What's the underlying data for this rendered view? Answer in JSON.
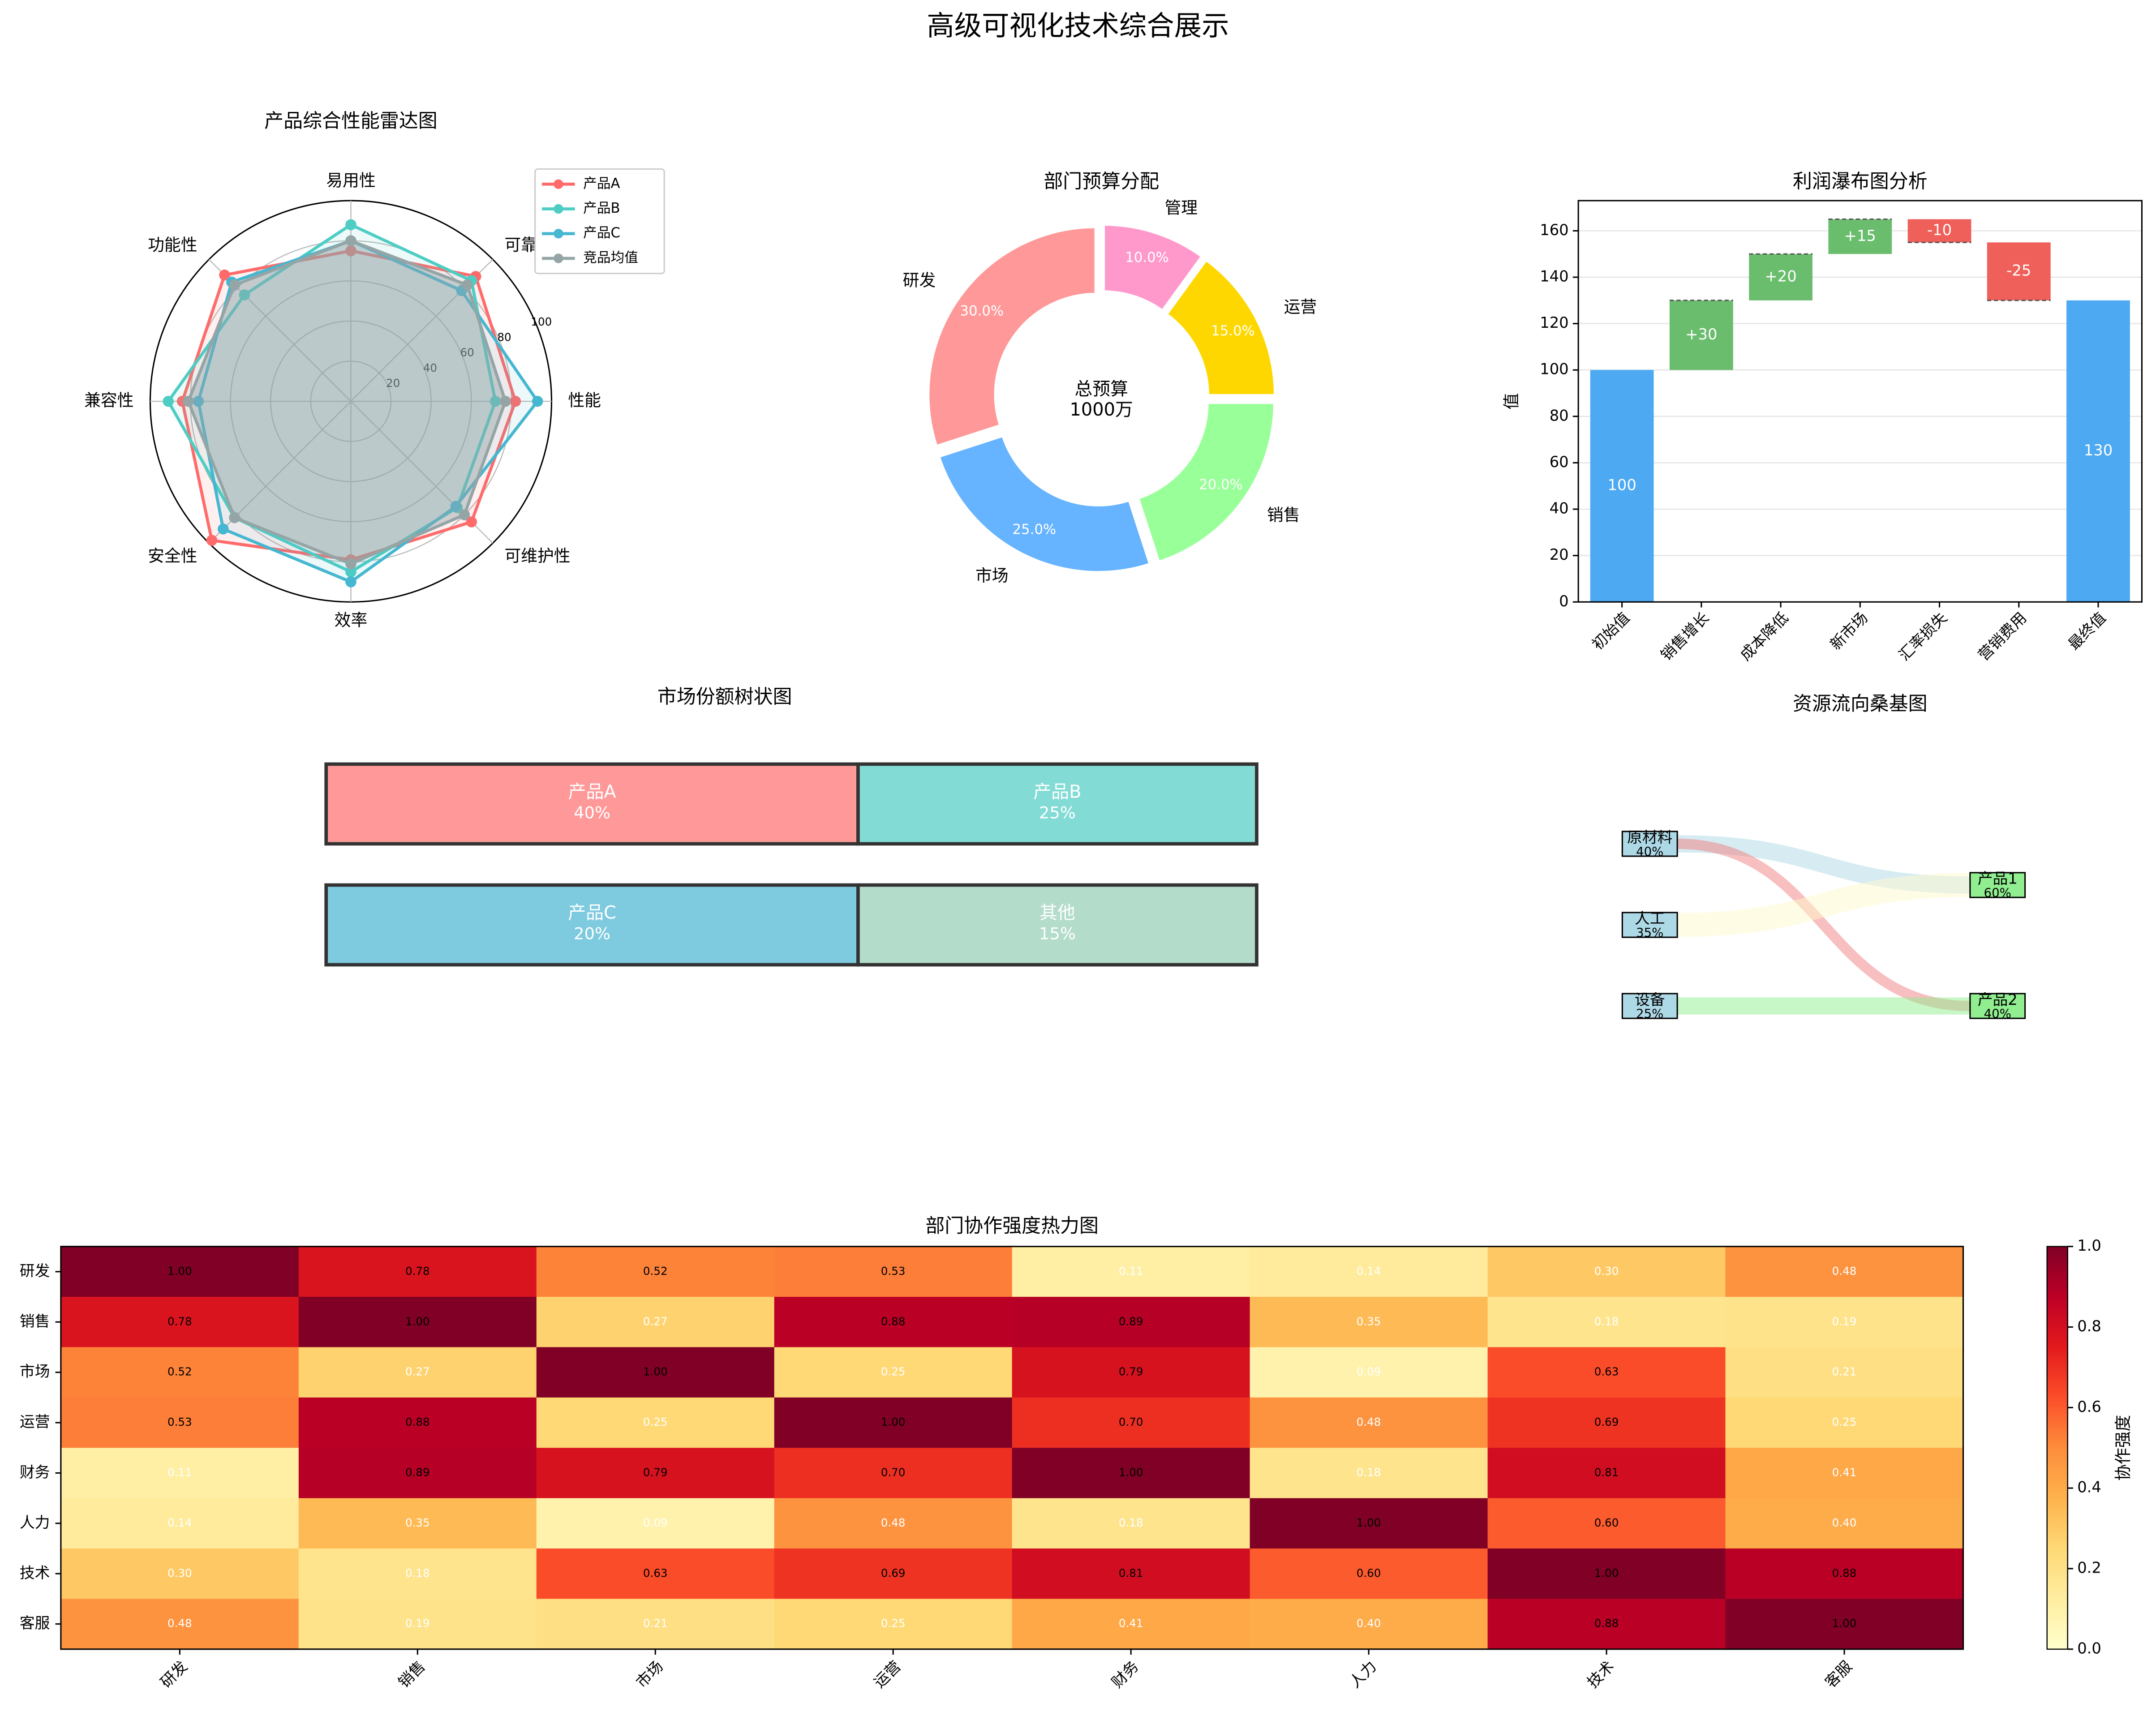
{
  "title": "高级可视化技术综合展示",
  "chart_data": [
    {
      "type": "radar",
      "title": "产品综合性能雷达图",
      "categories": [
        "性能",
        "可靠性",
        "易用性",
        "功能性",
        "兼容性",
        "安全性",
        "效率",
        "可维护性"
      ],
      "rlim": [
        0,
        100
      ],
      "rticks": [
        20,
        40,
        60,
        80,
        100
      ],
      "series": [
        {
          "name": "产品A",
          "color": "#ff6b6b",
          "values": [
            82,
            88,
            75,
            89,
            84,
            98,
            79,
            85
          ]
        },
        {
          "name": "产品B",
          "color": "#4ecdc4",
          "values": [
            72,
            85,
            88,
            75,
            91,
            82,
            85,
            75
          ]
        },
        {
          "name": "产品C",
          "color": "#45b7d1",
          "values": [
            93,
            78,
            80,
            84,
            76,
            90,
            90,
            74
          ]
        },
        {
          "name": "竞品均值",
          "color": "#95a5a6",
          "values": [
            77,
            82,
            80,
            82,
            81,
            82,
            81,
            80
          ]
        }
      ]
    },
    {
      "type": "pie",
      "title": "部门预算分配",
      "categories": [
        "研发",
        "市场",
        "销售",
        "运营",
        "管理"
      ],
      "values": [
        30,
        25,
        20,
        15,
        10
      ],
      "value_labels": [
        "30.0%",
        "25.0%",
        "20.0%",
        "15.0%",
        "10.0%"
      ],
      "colors": [
        "#ff9999",
        "#66b3ff",
        "#99ff99",
        "#ffd700",
        "#ff99cc"
      ],
      "center_text": [
        "总预算",
        "1000万"
      ]
    },
    {
      "type": "waterfall",
      "title": "利润瀑布图分析",
      "ylabel": "值",
      "categories": [
        "初始值",
        "销售增长",
        "成本降低",
        "新市场",
        "汇率损失",
        "营销费用",
        "最终值"
      ],
      "values": [
        100,
        30,
        20,
        15,
        -10,
        -25,
        130
      ],
      "value_labels": [
        "100",
        "+30",
        "+20",
        "+15",
        "-10",
        "-25",
        "130"
      ],
      "ylim": [
        0,
        173
      ],
      "yticks": [
        0,
        20,
        40,
        60,
        80,
        100,
        120,
        140,
        160
      ],
      "grid": true,
      "colors": {
        "total": "#4da9f2",
        "increase": "#6bbd6e",
        "decrease": "#f0605a"
      }
    },
    {
      "type": "treemap",
      "title": "市场份额树状图",
      "categories": [
        "产品A",
        "产品B",
        "产品C",
        "其他"
      ],
      "values": [
        40,
        25,
        20,
        15
      ],
      "value_labels": [
        "40%",
        "25%",
        "20%",
        "15%"
      ],
      "colors": [
        "#ff9999",
        "#82dbd5",
        "#7ecadf",
        "#b3dccb"
      ]
    },
    {
      "type": "sankey",
      "title": "资源流向桑基图",
      "nodes": [
        {
          "name": "原材料",
          "value": 40,
          "value_label": "40%"
        },
        {
          "name": "人工",
          "value": 35,
          "value_label": "35%"
        },
        {
          "name": "设备",
          "value": 25,
          "value_label": "25%"
        },
        {
          "name": "产品1",
          "value": 60,
          "value_label": "60%"
        },
        {
          "name": "产品2",
          "value": 40,
          "value_label": "40%"
        }
      ],
      "links": [
        {
          "source": 0,
          "target": 3,
          "value": 25,
          "color": "#add8e6"
        },
        {
          "source": 0,
          "target": 4,
          "value": 15,
          "color": "#f08080"
        },
        {
          "source": 1,
          "target": 3,
          "value": 35,
          "color": "#fffacd"
        },
        {
          "source": 2,
          "target": 4,
          "value": 25,
          "color": "#90ee90"
        }
      ]
    },
    {
      "type": "heatmap",
      "title": "部门协作强度热力图",
      "rows": [
        "研发",
        "销售",
        "市场",
        "运营",
        "财务",
        "人力",
        "技术",
        "客服"
      ],
      "columns": [
        "研发",
        "销售",
        "市场",
        "运营",
        "财务",
        "人力",
        "技术",
        "客服"
      ],
      "values": [
        [
          1.0,
          0.78,
          0.52,
          0.53,
          0.11,
          0.14,
          0.3,
          0.48
        ],
        [
          0.78,
          1.0,
          0.27,
          0.88,
          0.89,
          0.35,
          0.18,
          0.19
        ],
        [
          0.52,
          0.27,
          1.0,
          0.25,
          0.79,
          0.09,
          0.63,
          0.21
        ],
        [
          0.53,
          0.88,
          0.25,
          1.0,
          0.7,
          0.48,
          0.69,
          0.25
        ],
        [
          0.11,
          0.89,
          0.79,
          0.7,
          1.0,
          0.18,
          0.81,
          0.41
        ],
        [
          0.14,
          0.35,
          0.09,
          0.48,
          0.18,
          1.0,
          0.6,
          0.4
        ],
        [
          0.3,
          0.18,
          0.63,
          0.69,
          0.81,
          0.6,
          1.0,
          0.88
        ],
        [
          0.48,
          0.19,
          0.21,
          0.25,
          0.41,
          0.4,
          0.88,
          1.0
        ]
      ],
      "value_labels": [
        [
          "1.00",
          "0.78",
          "0.52",
          "0.53",
          "0.11",
          "0.14",
          "0.30",
          "0.48"
        ],
        [
          "0.78",
          "1.00",
          "0.27",
          "0.88",
          "0.89",
          "0.35",
          "0.18",
          "0.19"
        ],
        [
          "0.52",
          "0.27",
          "1.00",
          "0.25",
          "0.79",
          "0.09",
          "0.63",
          "0.21"
        ],
        [
          "0.53",
          "0.88",
          "0.25",
          "1.00",
          "0.70",
          "0.48",
          "0.69",
          "0.25"
        ],
        [
          "0.11",
          "0.89",
          "0.79",
          "0.70",
          "1.00",
          "0.18",
          "0.81",
          "0.41"
        ],
        [
          "0.14",
          "0.35",
          "0.09",
          "0.48",
          "0.18",
          "1.00",
          "0.60",
          "0.40"
        ],
        [
          "0.30",
          "0.18",
          "0.63",
          "0.69",
          "0.81",
          "0.60",
          "1.00",
          "0.88"
        ],
        [
          "0.48",
          "0.19",
          "0.21",
          "0.25",
          "0.41",
          "0.40",
          "0.88",
          "1.00"
        ]
      ],
      "colormap": "YlOrRd",
      "clim": [
        0,
        1
      ],
      "colorbar_label": "协作强度",
      "cticks": [
        {
          "value": 0,
          "label": "0.0"
        },
        {
          "value": 0.2,
          "label": "0.2"
        },
        {
          "value": 0.4,
          "label": "0.4"
        },
        {
          "value": 0.6,
          "label": "0.6"
        },
        {
          "value": 0.8,
          "label": "0.8"
        },
        {
          "value": 1,
          "label": "1.0"
        }
      ]
    }
  ]
}
